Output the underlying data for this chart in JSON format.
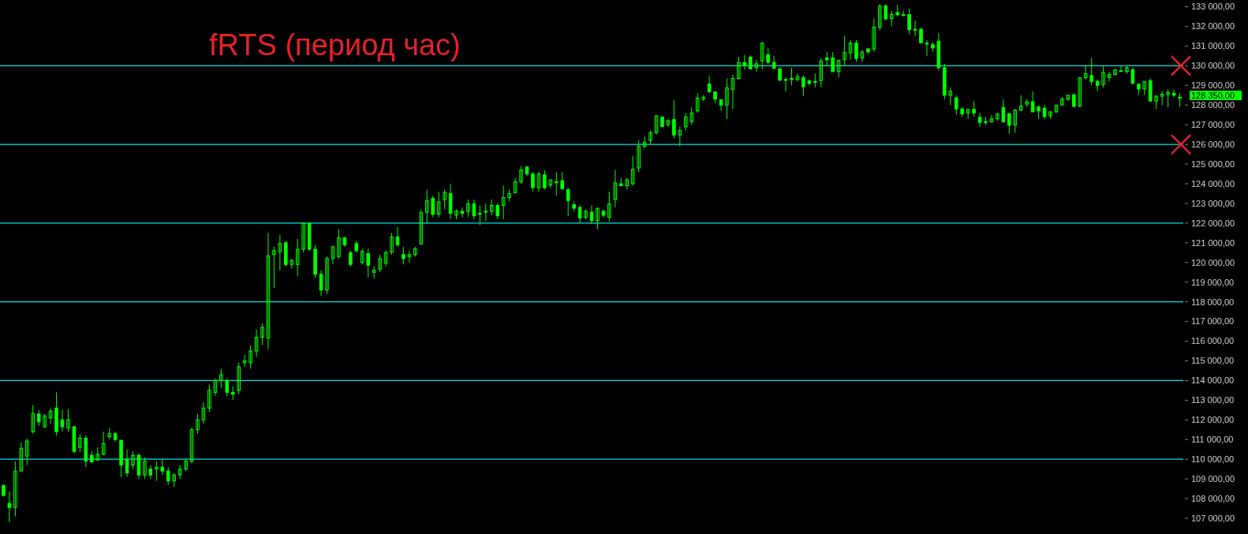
{
  "chart_data": {
    "type": "candlestick",
    "title": "fRTS (период час)",
    "color": "#00ff00",
    "tick_labels": "y",
    "ylim": [
      106200,
      133340
    ],
    "yticks": [
      {
        "value": 107000,
        "label": "107 000,00"
      },
      {
        "value": 108000,
        "label": "108 000,00"
      },
      {
        "value": 109000,
        "label": "109 000,00"
      },
      {
        "value": 110000,
        "label": "110 000,00"
      },
      {
        "value": 111000,
        "label": "111 000,00"
      },
      {
        "value": 112000,
        "label": "112 000,00"
      },
      {
        "value": 113000,
        "label": "113 000,00"
      },
      {
        "value": 114000,
        "label": "114 000,00"
      },
      {
        "value": 115000,
        "label": "115 000,00"
      },
      {
        "value": 116000,
        "label": "116 000,00"
      },
      {
        "value": 117000,
        "label": "117 000,00"
      },
      {
        "value": 118000,
        "label": "118 000,00"
      },
      {
        "value": 119000,
        "label": "119 000,00"
      },
      {
        "value": 120000,
        "label": "120 000,00"
      },
      {
        "value": 121000,
        "label": "121 000,00"
      },
      {
        "value": 122000,
        "label": "122 000,00"
      },
      {
        "value": 123000,
        "label": "123 000,00"
      },
      {
        "value": 124000,
        "label": "124 000,00"
      },
      {
        "value": 125000,
        "label": "125 000,00"
      },
      {
        "value": 126000,
        "label": "126 000,00"
      },
      {
        "value": 127000,
        "label": "127 000,00"
      },
      {
        "value": 128000,
        "label": "128 000,00"
      },
      {
        "value": 129000,
        "label": "129 000,00"
      },
      {
        "value": 130000,
        "label": "130 000,00"
      },
      {
        "value": 131000,
        "label": "131 000,00"
      },
      {
        "value": 132000,
        "label": "132 000,00"
      },
      {
        "value": 133000,
        "label": "133 000,00"
      }
    ],
    "ref_lines": [
      {
        "axis": "y",
        "value": 110000,
        "color": "#00e5e5"
      },
      {
        "axis": "y",
        "value": 114000,
        "color": "#00e5e5"
      },
      {
        "axis": "y",
        "value": 118000,
        "color": "#00e5e5"
      },
      {
        "axis": "y",
        "value": 122000,
        "color": "#00e5e5"
      },
      {
        "axis": "y",
        "value": 126000,
        "color": "#00e5e5"
      },
      {
        "axis": "y",
        "value": 130000,
        "color": "#00e5e5"
      }
    ],
    "annotations": [
      "128 350,00"
    ],
    "categories": [
      null,
      null,
      null,
      null,
      null,
      null,
      null,
      null,
      null,
      null,
      null,
      null,
      null,
      null,
      null,
      null,
      null,
      null,
      null,
      null,
      null,
      null,
      null,
      null,
      null,
      null,
      null,
      null,
      null,
      null,
      null,
      null,
      null,
      null,
      null,
      null,
      null,
      null,
      null,
      null,
      null,
      null,
      null,
      null,
      null,
      null,
      null,
      null,
      null,
      null,
      null,
      null,
      null,
      null,
      null,
      null,
      null,
      null,
      null,
      null,
      null,
      null,
      null,
      null,
      null,
      null,
      null,
      null,
      null,
      null,
      null,
      null,
      null,
      null,
      null,
      null,
      null,
      null,
      null,
      null,
      null,
      null,
      null,
      null,
      null,
      null,
      null,
      null,
      null,
      null,
      null,
      null,
      null,
      null,
      null,
      null,
      null,
      null,
      null,
      null,
      null,
      null,
      null,
      null,
      null,
      null,
      null,
      null,
      null,
      null,
      null,
      null,
      null,
      null,
      null,
      null,
      null,
      null,
      null,
      null,
      null,
      null,
      null,
      null,
      null,
      null,
      null,
      null,
      null,
      null,
      null,
      null,
      null,
      null,
      null,
      null,
      null,
      null,
      null,
      null,
      null,
      null,
      null,
      null,
      null,
      null,
      null,
      null,
      null,
      null,
      null,
      null,
      null,
      null,
      null,
      null,
      null,
      null,
      null,
      null,
      null,
      null,
      null,
      null,
      null,
      null,
      null,
      null,
      null,
      null,
      null,
      null,
      null,
      null,
      null,
      null,
      null,
      null,
      null,
      null,
      null,
      null,
      null,
      null,
      null,
      null,
      null,
      null,
      null,
      null,
      null,
      null,
      null,
      null,
      null,
      null,
      null,
      null,
      null,
      null,
      null
    ],
    "ohlc": [
      [
        108670,
        108700,
        108100,
        108160
      ],
      [
        107760,
        108370,
        106800,
        107550
      ],
      [
        107550,
        109900,
        107100,
        109400
      ],
      [
        109400,
        110850,
        109400,
        110560
      ],
      [
        110160,
        111050,
        109700,
        110930
      ],
      [
        111400,
        112760,
        111300,
        112330
      ],
      [
        112300,
        112500,
        111700,
        111900
      ],
      [
        111650,
        112300,
        111600,
        112200
      ],
      [
        112100,
        112600,
        111800,
        112450
      ],
      [
        112600,
        113400,
        111200,
        111400
      ],
      [
        112000,
        112500,
        111400,
        111650
      ],
      [
        111600,
        112550,
        111400,
        112000
      ],
      [
        111650,
        111700,
        110300,
        110400
      ],
      [
        110600,
        111270,
        110350,
        111070
      ],
      [
        111070,
        111200,
        109600,
        109900
      ],
      [
        110200,
        110400,
        109800,
        109870
      ],
      [
        109960,
        110600,
        109900,
        110250
      ],
      [
        110250,
        111400,
        110200,
        110800
      ],
      [
        111150,
        111600,
        111000,
        111300
      ],
      [
        111300,
        111400,
        110900,
        111000
      ],
      [
        110950,
        111000,
        109100,
        109700
      ],
      [
        110000,
        110500,
        109100,
        109300
      ],
      [
        109700,
        110400,
        109500,
        110200
      ],
      [
        110200,
        110300,
        109000,
        109200
      ],
      [
        109200,
        110100,
        109000,
        109900
      ],
      [
        109500,
        109700,
        109000,
        109200
      ],
      [
        109500,
        109900,
        108900,
        109600
      ],
      [
        109600,
        110000,
        109200,
        109400
      ],
      [
        109400,
        109600,
        108700,
        108900
      ],
      [
        108900,
        109300,
        108600,
        109200
      ],
      [
        109200,
        109700,
        109000,
        109500
      ],
      [
        109500,
        110000,
        109400,
        109900
      ],
      [
        109900,
        111600,
        109800,
        111500
      ],
      [
        111500,
        112300,
        111300,
        112000
      ],
      [
        112000,
        112900,
        111800,
        112600
      ],
      [
        112600,
        113800,
        112400,
        113500
      ],
      [
        113400,
        114100,
        113200,
        114000
      ],
      [
        114000,
        114600,
        113600,
        114300
      ],
      [
        114000,
        114100,
        113200,
        113400
      ],
      [
        113400,
        113700,
        113000,
        113300
      ],
      [
        113500,
        114900,
        113300,
        114700
      ],
      [
        114900,
        115300,
        114700,
        115000
      ],
      [
        114900,
        115800,
        114600,
        115500
      ],
      [
        115500,
        116600,
        115200,
        116200
      ],
      [
        116200,
        116900,
        115800,
        116700
      ],
      [
        116160,
        121500,
        115600,
        120340
      ],
      [
        120400,
        120800,
        118700,
        120600
      ],
      [
        120550,
        121400,
        119600,
        120960
      ],
      [
        121000,
        121100,
        119800,
        119900
      ],
      [
        119900,
        120200,
        119700,
        120100
      ],
      [
        119900,
        121200,
        119300,
        120670
      ],
      [
        120670,
        122000,
        120500,
        122000
      ],
      [
        122000,
        122000,
        120600,
        120670
      ],
      [
        120670,
        120900,
        119200,
        119400
      ],
      [
        119400,
        119600,
        118300,
        118600
      ],
      [
        118600,
        120300,
        118400,
        120200
      ],
      [
        120200,
        120800,
        119900,
        120800
      ],
      [
        120300,
        121700,
        120200,
        121260
      ],
      [
        121260,
        121300,
        120800,
        120900
      ],
      [
        120500,
        120600,
        119800,
        119900
      ],
      [
        120960,
        121100,
        120500,
        120600
      ],
      [
        120000,
        120700,
        119900,
        120560
      ],
      [
        120450,
        120700,
        119260,
        119860
      ],
      [
        119500,
        119800,
        119200,
        119600
      ],
      [
        119660,
        120400,
        119500,
        120200
      ],
      [
        119960,
        120600,
        119800,
        120500
      ],
      [
        120530,
        121500,
        120400,
        121300
      ],
      [
        121300,
        121800,
        120800,
        120900
      ],
      [
        120400,
        120800,
        119900,
        120200
      ],
      [
        120300,
        120600,
        120000,
        120400
      ],
      [
        120400,
        120800,
        120300,
        120700
      ],
      [
        120940,
        122700,
        120900,
        122530
      ],
      [
        122550,
        123700,
        122000,
        123140
      ],
      [
        123260,
        123400,
        122300,
        122450
      ],
      [
        122450,
        123600,
        122300,
        123080
      ],
      [
        123200,
        123700,
        122700,
        123560
      ],
      [
        123500,
        124000,
        122200,
        122500
      ],
      [
        122400,
        122700,
        122200,
        122600
      ],
      [
        122600,
        122800,
        122300,
        122500
      ],
      [
        122600,
        123200,
        122300,
        122980
      ],
      [
        122980,
        123200,
        122200,
        122370
      ],
      [
        122500,
        122900,
        121900,
        122500
      ],
      [
        122600,
        123000,
        122100,
        122600
      ],
      [
        122600,
        123200,
        122400,
        122900
      ],
      [
        122900,
        123000,
        122200,
        122370
      ],
      [
        122900,
        123900,
        122200,
        123300
      ],
      [
        123300,
        123700,
        123100,
        123500
      ],
      [
        123550,
        124300,
        123500,
        124100
      ],
      [
        124100,
        124900,
        124000,
        124700
      ],
      [
        124850,
        124900,
        124400,
        124500
      ],
      [
        124500,
        124600,
        123600,
        123800
      ],
      [
        123800,
        124600,
        123600,
        124500
      ],
      [
        124450,
        124700,
        123700,
        123800
      ],
      [
        123930,
        124200,
        123800,
        124200
      ],
      [
        124100,
        124600,
        123400,
        124100
      ],
      [
        124160,
        124600,
        123700,
        123750
      ],
      [
        123700,
        123800,
        122370,
        123150
      ],
      [
        122940,
        123100,
        122600,
        122760
      ],
      [
        122800,
        122900,
        122000,
        122260
      ],
      [
        122300,
        122700,
        122200,
        122600
      ],
      [
        122560,
        122900,
        121940,
        122130
      ],
      [
        122130,
        122800,
        121700,
        122750
      ],
      [
        122600,
        122700,
        122300,
        122400
      ],
      [
        122300,
        123600,
        122100,
        122980
      ],
      [
        123200,
        124700,
        122800,
        124040
      ],
      [
        124000,
        124300,
        123900,
        123900
      ],
      [
        123900,
        124300,
        123700,
        124200
      ],
      [
        124000,
        125400,
        123900,
        124740
      ],
      [
        124800,
        126200,
        124600,
        125900
      ],
      [
        125900,
        126400,
        125800,
        126100
      ],
      [
        126200,
        126700,
        126000,
        126600
      ],
      [
        126600,
        127500,
        126500,
        127450
      ],
      [
        127400,
        127400,
        126900,
        126900
      ],
      [
        127000,
        127300,
        126900,
        127200
      ],
      [
        127260,
        128250,
        126300,
        126480
      ],
      [
        126480,
        126900,
        125900,
        126700
      ],
      [
        126900,
        127600,
        126700,
        127400
      ],
      [
        127160,
        127900,
        127000,
        127600
      ],
      [
        127700,
        128600,
        127600,
        128350
      ],
      [
        128300,
        128500,
        128200,
        128400
      ],
      [
        129070,
        129500,
        128600,
        128680
      ],
      [
        128670,
        128700,
        128100,
        128300
      ],
      [
        128270,
        128300,
        127700,
        128000
      ],
      [
        128000,
        129350,
        127300,
        128880
      ],
      [
        128800,
        129550,
        127800,
        129350
      ],
      [
        129350,
        130450,
        129300,
        130160
      ],
      [
        130160,
        130550,
        129800,
        130000
      ],
      [
        130440,
        130500,
        129800,
        129840
      ],
      [
        129900,
        130300,
        129700,
        130100
      ],
      [
        130240,
        131200,
        129800,
        131150
      ],
      [
        130560,
        130900,
        130100,
        130170
      ],
      [
        130170,
        130500,
        129800,
        129870
      ],
      [
        129840,
        129900,
        129200,
        129280
      ],
      [
        129300,
        129400,
        128700,
        129300
      ],
      [
        129350,
        129900,
        129000,
        129300
      ],
      [
        129300,
        129600,
        129200,
        129450
      ],
      [
        129400,
        129500,
        128450,
        128930
      ],
      [
        129230,
        129300,
        129000,
        129100
      ],
      [
        129200,
        129600,
        128900,
        129200
      ],
      [
        129240,
        130400,
        128900,
        130240
      ],
      [
        130400,
        130700,
        130000,
        130300
      ],
      [
        130400,
        130700,
        129700,
        129700
      ],
      [
        129700,
        130300,
        129400,
        130270
      ],
      [
        130300,
        131500,
        130000,
        130670
      ],
      [
        130650,
        131300,
        130300,
        131150
      ],
      [
        131150,
        131300,
        130200,
        130370
      ],
      [
        130400,
        130800,
        130200,
        130700
      ],
      [
        130850,
        130900,
        130600,
        130700
      ],
      [
        130850,
        132400,
        130700,
        131960
      ],
      [
        131960,
        133140,
        131800,
        133030
      ],
      [
        133050,
        133100,
        132300,
        132380
      ],
      [
        132400,
        132800,
        132000,
        132600
      ],
      [
        132700,
        133100,
        132500,
        132600
      ],
      [
        132550,
        132800,
        132500,
        132600
      ],
      [
        132600,
        132900,
        131600,
        131830
      ],
      [
        131850,
        132300,
        131500,
        131850
      ],
      [
        131860,
        131900,
        131160,
        131160
      ],
      [
        131150,
        131300,
        130500,
        131100
      ],
      [
        131070,
        131200,
        130700,
        130900
      ],
      [
        131250,
        131660,
        129750,
        129900
      ],
      [
        129900,
        130100,
        128300,
        128500
      ],
      [
        128500,
        128900,
        128000,
        128700
      ],
      [
        128370,
        128500,
        127500,
        127800
      ],
      [
        127800,
        127900,
        127400,
        127550
      ],
      [
        127600,
        127800,
        127300,
        127780
      ],
      [
        127780,
        128200,
        127400,
        127600
      ],
      [
        127390,
        127600,
        126900,
        127120
      ],
      [
        127120,
        127400,
        127000,
        127150
      ],
      [
        127150,
        127500,
        127100,
        127300
      ],
      [
        127300,
        127600,
        127200,
        127550
      ],
      [
        127880,
        128300,
        127100,
        127150
      ],
      [
        127560,
        127600,
        126540,
        126970
      ],
      [
        126990,
        127800,
        126600,
        127740
      ],
      [
        127740,
        128500,
        127700,
        127950
      ],
      [
        128050,
        128300,
        127900,
        128170
      ],
      [
        128170,
        128700,
        127650,
        127650
      ],
      [
        127900,
        128000,
        127300,
        127700
      ],
      [
        127840,
        128000,
        127300,
        127410
      ],
      [
        127450,
        127700,
        127300,
        127650
      ],
      [
        127650,
        128000,
        127600,
        128000
      ],
      [
        128000,
        128400,
        128000,
        128300
      ],
      [
        128300,
        128500,
        128200,
        128500
      ],
      [
        128520,
        128600,
        127900,
        127930
      ],
      [
        127950,
        129400,
        127900,
        129390
      ],
      [
        129390,
        130000,
        129300,
        129600
      ],
      [
        129500,
        130400,
        129000,
        129200
      ],
      [
        129200,
        129300,
        128700,
        129000
      ],
      [
        129050,
        130000,
        128900,
        129660
      ],
      [
        129400,
        129700,
        129200,
        129550
      ],
      [
        129550,
        129800,
        129500,
        129800
      ],
      [
        129750,
        130000,
        129700,
        129750
      ],
      [
        129700,
        130000,
        129600,
        129900
      ],
      [
        129800,
        129900,
        129100,
        129100
      ],
      [
        129060,
        129100,
        128500,
        128820
      ],
      [
        128820,
        129200,
        128500,
        129200
      ],
      [
        129240,
        129350,
        128200,
        128200
      ],
      [
        128200,
        128500,
        127800,
        128450
      ],
      [
        128450,
        128700,
        128000,
        128550
      ],
      [
        128550,
        128800,
        127900,
        128650
      ],
      [
        128600,
        128800,
        128400,
        128500
      ],
      [
        128400,
        128600,
        127900,
        128350
      ]
    ]
  }
}
